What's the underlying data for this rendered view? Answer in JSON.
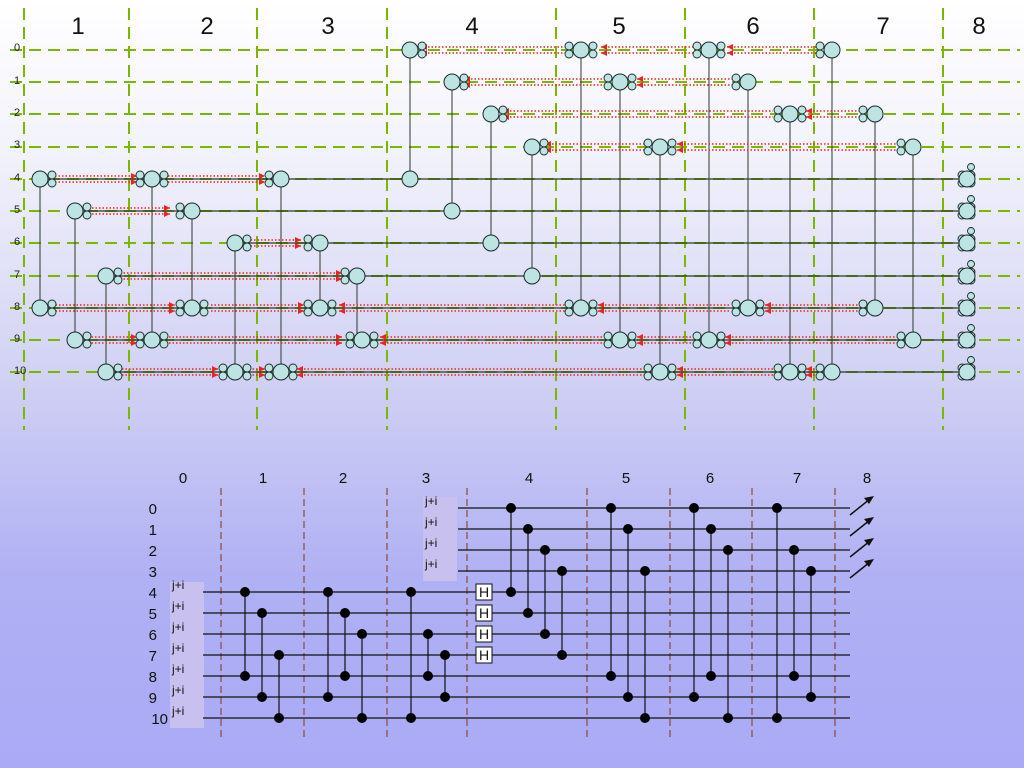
{
  "top_diagram": {
    "column_labels": [
      "1",
      "2",
      "3",
      "4",
      "5",
      "6",
      "7",
      "8"
    ],
    "row_labels": [
      "0",
      "1",
      "2",
      "3",
      "4",
      "5",
      "6",
      "7",
      "8",
      "9",
      "10"
    ],
    "colors": {
      "grid_dash": "#7ab800",
      "arrow_dot": "#ee2222",
      "arrow_head": "#ee2222",
      "node_fill": "#bde3e3",
      "node_stroke": "#1a2a2a",
      "wire": "#2a3a2a"
    }
  },
  "bottom_circuit": {
    "column_labels": [
      "0",
      "1",
      "2",
      "3",
      "4",
      "5",
      "6",
      "7",
      "8"
    ],
    "row_labels": [
      "0",
      "1",
      "2",
      "3",
      "4",
      "5",
      "6",
      "7",
      "8",
      "9",
      "10"
    ],
    "input_tag": "j+i",
    "hadamard_label": "H",
    "colors": {
      "wire": "#111111",
      "divider": "#8b4a3a",
      "tag_fill": "#c8c0ee",
      "dot": "#000000"
    }
  }
}
